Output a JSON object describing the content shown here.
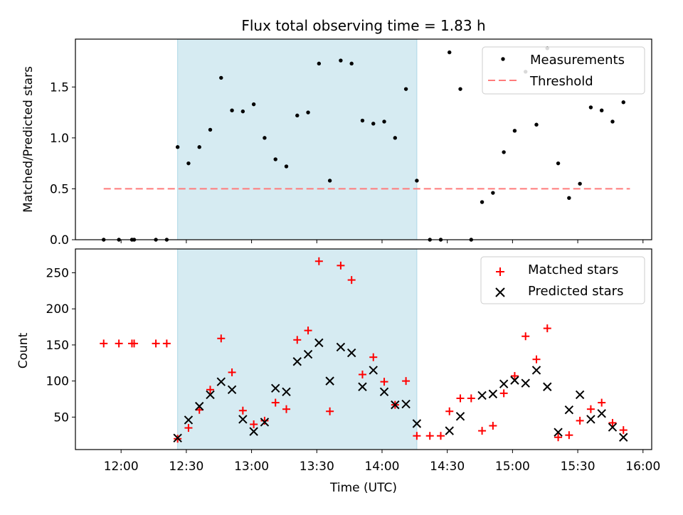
{
  "figure": {
    "title": "Flux total observing time = 1.83 h"
  },
  "chart_data": [
    {
      "type": "scatter",
      "panel": "top",
      "ylabel": "Matched/Predicted stars",
      "xlabel": "",
      "xlim": [
        "11:39",
        "16:04"
      ],
      "ylim": [
        0,
        1.97
      ],
      "yticks": [
        0.0,
        0.5,
        1.0,
        1.5
      ],
      "ytick_labels": [
        "0.0",
        "0.5",
        "1.0",
        "1.5"
      ],
      "xticks": [
        "12:00",
        "12:30",
        "13:00",
        "13:30",
        "14:00",
        "14:30",
        "15:00",
        "15:30",
        "16:00"
      ],
      "highlight_span": [
        "12:26",
        "14:16"
      ],
      "threshold": {
        "value": 0.5,
        "x_range": [
          "11:52",
          "15:54"
        ]
      },
      "grid": false,
      "legend_position": "upper right",
      "legend": [
        {
          "label": "Measurements",
          "marker": "dot",
          "color": "#000000"
        },
        {
          "label": "Threshold",
          "marker": "dashed-line",
          "color": "#ff7b7b"
        }
      ],
      "series": [
        {
          "name": "Measurements",
          "x": [
            "11:52",
            "11:59",
            "12:05",
            "12:06",
            "12:16",
            "12:21",
            "12:26",
            "12:31",
            "12:36",
            "12:41",
            "12:46",
            "12:51",
            "12:56",
            "13:01",
            "13:06",
            "13:11",
            "13:16",
            "13:21",
            "13:26",
            "13:31",
            "13:36",
            "13:41",
            "13:46",
            "13:51",
            "13:56",
            "14:01",
            "14:06",
            "14:11",
            "14:16",
            "14:22",
            "14:27",
            "14:31",
            "14:36",
            "14:41",
            "14:46",
            "14:51",
            "14:56",
            "15:01",
            "15:06",
            "15:11",
            "15:16",
            "15:21",
            "15:26",
            "15:31",
            "15:36",
            "15:41",
            "15:46",
            "15:51"
          ],
          "y": [
            0,
            0,
            0,
            0,
            0,
            0,
            0.91,
            0.75,
            0.91,
            1.08,
            1.59,
            1.27,
            1.26,
            1.33,
            1.0,
            0.79,
            0.72,
            1.22,
            1.25,
            1.73,
            0.58,
            1.76,
            1.73,
            1.17,
            1.14,
            1.16,
            1.0,
            1.48,
            0.58,
            0,
            0,
            1.84,
            1.48,
            0,
            0.37,
            0.46,
            0.86,
            1.07,
            1.65,
            1.13,
            1.88,
            0.75,
            0.41,
            0.55,
            1.3,
            1.27,
            1.16,
            1.35
          ]
        }
      ]
    },
    {
      "type": "scatter",
      "panel": "bottom",
      "xlabel": "Time (UTC)",
      "ylabel": "Count",
      "xlim": [
        "11:39",
        "16:04"
      ],
      "ylim": [
        5,
        283
      ],
      "yticks": [
        50,
        100,
        150,
        200,
        250
      ],
      "ytick_labels": [
        "50",
        "100",
        "150",
        "200",
        "250"
      ],
      "xticks": [
        "12:00",
        "12:30",
        "13:00",
        "13:30",
        "14:00",
        "14:30",
        "15:00",
        "15:30",
        "16:00"
      ],
      "xtick_labels": [
        "12:00",
        "12:30",
        "13:00",
        "13:30",
        "14:00",
        "14:30",
        "15:00",
        "15:30",
        "16:00"
      ],
      "highlight_span": [
        "12:26",
        "14:16"
      ],
      "grid": false,
      "legend_position": "upper right",
      "legend": [
        {
          "label": "Matched stars",
          "marker": "plus",
          "color": "#ff0000"
        },
        {
          "label": "Predicted stars",
          "marker": "x",
          "color": "#000000"
        }
      ],
      "series": [
        {
          "name": "Matched stars",
          "x": [
            "11:52",
            "11:59",
            "12:05",
            "12:06",
            "12:16",
            "12:21",
            "12:26",
            "12:31",
            "12:36",
            "12:41",
            "12:46",
            "12:51",
            "12:56",
            "13:01",
            "13:06",
            "13:11",
            "13:16",
            "13:21",
            "13:26",
            "13:31",
            "13:36",
            "13:41",
            "13:46",
            "13:51",
            "13:56",
            "14:01",
            "14:06",
            "14:11",
            "14:16",
            "14:22",
            "14:27",
            "14:31",
            "14:36",
            "14:41",
            "14:46",
            "14:51",
            "14:56",
            "15:01",
            "15:06",
            "15:11",
            "15:16",
            "15:21",
            "15:26",
            "15:31",
            "15:36",
            "15:41",
            "15:46",
            "15:51"
          ],
          "y": [
            152,
            152,
            152,
            152,
            152,
            152,
            20,
            35,
            60,
            88,
            159,
            112,
            59,
            40,
            45,
            70,
            61,
            157,
            170,
            266,
            58,
            260,
            240,
            109,
            133,
            99,
            67,
            100,
            24,
            24,
            24,
            58,
            76,
            76,
            31,
            38,
            83,
            107,
            162,
            130,
            173,
            22,
            25,
            45,
            61,
            70,
            42,
            32
          ]
        },
        {
          "name": "Predicted stars",
          "x": [
            "12:26",
            "12:31",
            "12:36",
            "12:41",
            "12:46",
            "12:51",
            "12:56",
            "13:01",
            "13:06",
            "13:11",
            "13:16",
            "13:21",
            "13:26",
            "13:31",
            "13:36",
            "13:41",
            "13:46",
            "13:51",
            "13:56",
            "14:01",
            "14:06",
            "14:11",
            "14:16",
            "14:31",
            "14:36",
            "14:46",
            "14:51",
            "14:56",
            "15:01",
            "15:06",
            "15:11",
            "15:16",
            "15:21",
            "15:26",
            "15:31",
            "15:36",
            "15:41",
            "15:46",
            "15:51"
          ],
          "y": [
            21,
            46,
            65,
            81,
            99,
            88,
            47,
            30,
            43,
            90,
            85,
            127,
            137,
            153,
            100,
            147,
            139,
            92,
            115,
            85,
            67,
            68,
            41,
            31,
            51,
            80,
            82,
            96,
            101,
            97,
            115,
            92,
            29,
            60,
            81,
            47,
            55,
            36,
            22
          ]
        }
      ]
    }
  ]
}
